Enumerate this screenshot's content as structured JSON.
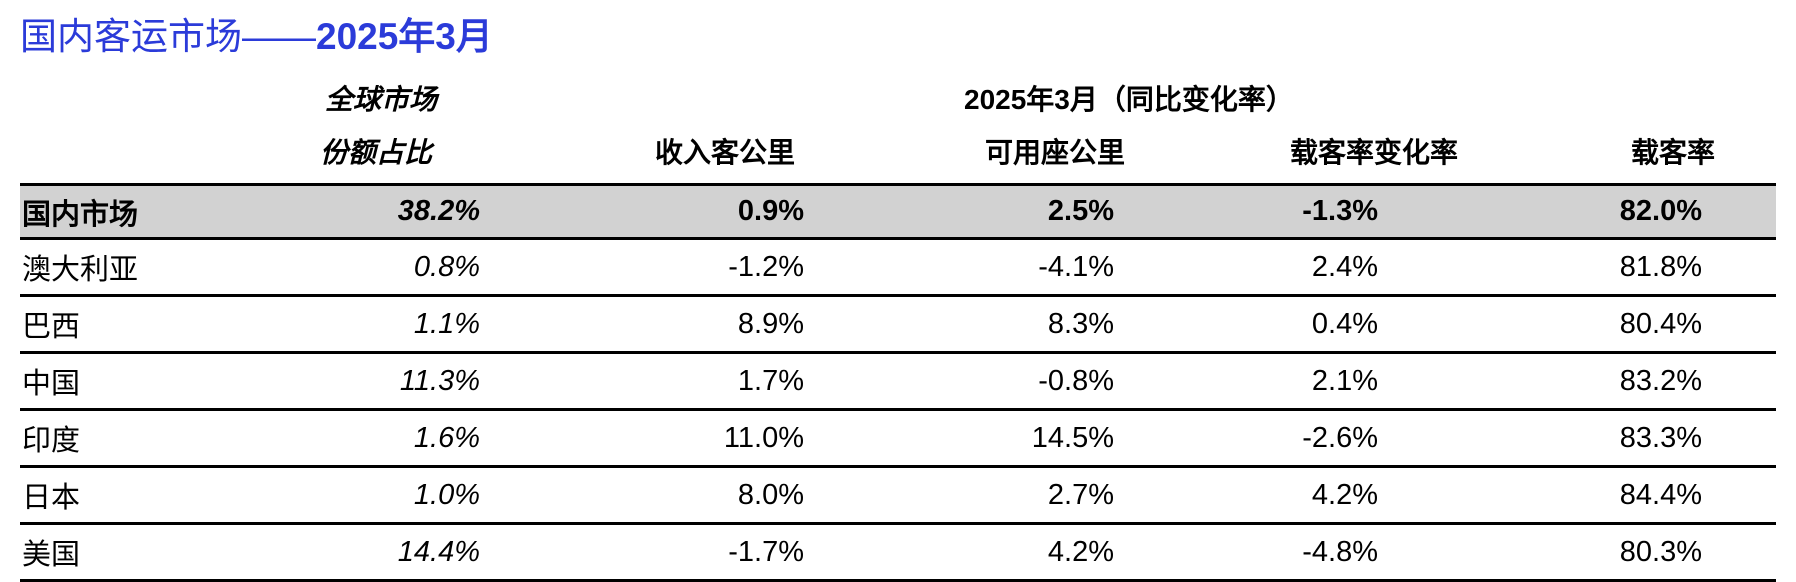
{
  "title": {
    "prefix": "国内客运市场——",
    "date": "2025年3月"
  },
  "header": {
    "share_line1": "全球市场",
    "share_line2": "份额占比",
    "group_label": "2025年3月（同比变化率）",
    "rpk": "收入客公里",
    "ask": "可用座公里",
    "plf_change": "载客率变化率",
    "plf": "载客率"
  },
  "rows": [
    {
      "name": "国内市场",
      "share": "38.2%",
      "rpk": "0.9%",
      "ask": "2.5%",
      "plf_change": "-1.3%",
      "plf": "82.0%"
    },
    {
      "name": "澳大利亚",
      "share": "0.8%",
      "rpk": "-1.2%",
      "ask": "-4.1%",
      "plf_change": "2.4%",
      "plf": "81.8%"
    },
    {
      "name": "巴西",
      "share": "1.1%",
      "rpk": "8.9%",
      "ask": "8.3%",
      "plf_change": "0.4%",
      "plf": "80.4%"
    },
    {
      "name": "中国",
      "share": "11.3%",
      "rpk": "1.7%",
      "ask": "-0.8%",
      "plf_change": "2.1%",
      "plf": "83.2%"
    },
    {
      "name": "印度",
      "share": "1.6%",
      "rpk": "11.0%",
      "ask": "14.5%",
      "plf_change": "-2.6%",
      "plf": "83.3%"
    },
    {
      "name": "日本",
      "share": "1.0%",
      "rpk": "8.0%",
      "ask": "2.7%",
      "plf_change": "4.2%",
      "plf": "84.4%"
    },
    {
      "name": "美国",
      "share": "14.4%",
      "rpk": "-1.7%",
      "ask": "4.2%",
      "plf_change": "-4.8%",
      "plf": "80.3%"
    }
  ],
  "colors": {
    "title": "#2b3bd9",
    "highlight_row": "#d2d2d2"
  }
}
